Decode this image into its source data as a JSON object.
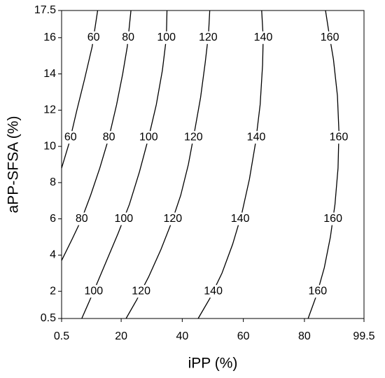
{
  "chart_data": {
    "type": "contour",
    "x_label": "iPP (%)",
    "y_label": "aPP-SFSA (%)",
    "xlim": [
      0.5,
      99.5
    ],
    "ylim": [
      0.5,
      17.5
    ],
    "xticks": [
      0.5,
      20,
      40,
      60,
      80,
      99.5
    ],
    "yticks": [
      0.5,
      2,
      4,
      6,
      8,
      10,
      12,
      14,
      16,
      17.5
    ],
    "color": "#000000",
    "contours": [
      {
        "level": 60,
        "x": [
          0.5,
          3,
          5.5,
          8,
          10.5,
          12.3
        ],
        "y": [
          8.8,
          10.2,
          12,
          13.7,
          15.5,
          17.5
        ]
      },
      {
        "level": 80,
        "x": [
          0.5,
          4,
          7.1,
          10,
          13,
          16,
          18.5,
          20.5,
          22,
          23.2
        ],
        "y": [
          3.7,
          4.9,
          6,
          7.3,
          8.8,
          10.5,
          12.3,
          14,
          15.5,
          17.5
        ]
      },
      {
        "level": 100,
        "x": [
          7.1,
          11,
          15,
          19,
          22.7,
          26,
          29,
          31.5,
          33.5,
          34.8,
          35
        ],
        "y": [
          0.5,
          2,
          3.6,
          5.2,
          6.8,
          8.6,
          10.5,
          12.3,
          14.2,
          16,
          17.5
        ]
      },
      {
        "level": 120,
        "x": [
          21.6,
          25,
          29,
          33,
          36.5,
          39.5,
          42,
          44,
          46,
          47.5,
          48.6,
          49
        ],
        "y": [
          0.5,
          1.5,
          2.8,
          4.3,
          5.8,
          7.3,
          9,
          10.8,
          12.7,
          14.6,
          16.2,
          17.5
        ]
      },
      {
        "level": 140,
        "x": [
          45.2,
          49,
          53,
          56.5,
          59.5,
          62,
          64,
          65.5,
          66.3,
          66.5,
          66
        ],
        "y": [
          0.5,
          1.6,
          3,
          4.6,
          6.3,
          8.2,
          10.2,
          12.3,
          14.5,
          16,
          17.5
        ]
      },
      {
        "level": 160,
        "x": [
          81.2,
          84,
          86.5,
          88.5,
          90,
          91,
          91.3,
          90.8,
          89.5,
          88,
          86.9
        ],
        "y": [
          0.5,
          1.8,
          3.3,
          5,
          6.8,
          8.8,
          10.8,
          12.8,
          14.8,
          16.3,
          17.5
        ]
      }
    ]
  }
}
